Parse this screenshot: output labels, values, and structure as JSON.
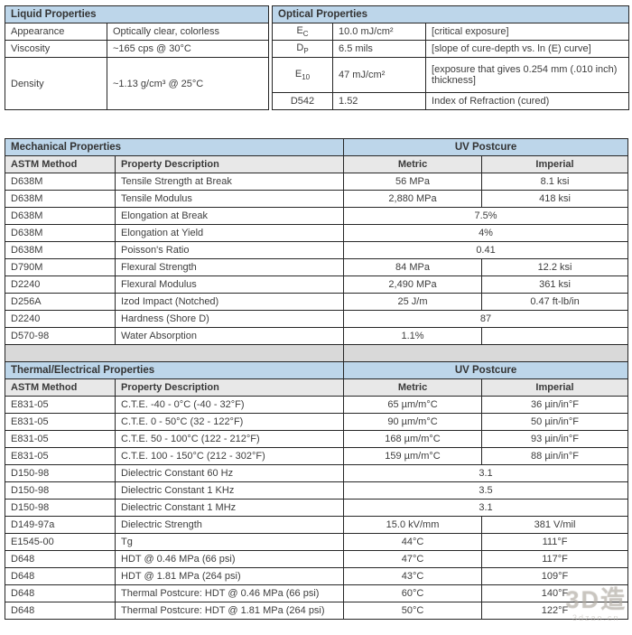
{
  "liquid": {
    "title": "Liquid Properties",
    "rows": [
      {
        "property": "Appearance",
        "value": "Optically clear, colorless"
      },
      {
        "property": "Viscosity",
        "value": "~165 cps @ 30°C"
      },
      {
        "property": "Density",
        "value": "~1.13 g/cm³ @ 25°C"
      }
    ]
  },
  "optical": {
    "title": "Optical Properties",
    "rows": [
      {
        "sym": "E",
        "sub": "C",
        "value": "10.0 mJ/cm²",
        "note": "[critical exposure]"
      },
      {
        "sym": "D",
        "sub": "P",
        "value": "6.5 mils",
        "note": "[slope of cure-depth vs. ln (E) curve]"
      },
      {
        "sym": "E",
        "sub": "10",
        "value": "47 mJ/cm²",
        "note": "[exposure that gives 0.254 mm (.010 inch) thickness]"
      },
      {
        "sym": "D542",
        "sub": "",
        "value": "1.52",
        "note": "Index of Refraction (cured)"
      }
    ]
  },
  "mechanical": {
    "title": "Mechanical Properties",
    "group_header": "UV Postcure",
    "columns": {
      "method": "ASTM Method",
      "property": "Property Description",
      "metric": "Metric",
      "imperial": "Imperial"
    },
    "rows": [
      {
        "method": "D638M",
        "property": "Tensile Strength at Break",
        "metric": "56 MPa",
        "imperial": "8.1 ksi"
      },
      {
        "method": "D638M",
        "property": "Tensile Modulus",
        "metric": "2,880 MPa",
        "imperial": "418 ksi"
      },
      {
        "method": "D638M",
        "property": "Elongation at Break",
        "span": "7.5%"
      },
      {
        "method": "D638M",
        "property": "Elongation at Yield",
        "span": "4%"
      },
      {
        "method": "D638M",
        "property": "Poisson's Ratio",
        "span": "0.41"
      },
      {
        "method": "D790M",
        "property": "Flexural Strength",
        "metric": "84 MPa",
        "imperial": "12.2 ksi"
      },
      {
        "method": "D2240",
        "property": "Flexural Modulus",
        "metric": "2,490 MPa",
        "imperial": "361 ksi"
      },
      {
        "method": "D256A",
        "property": "Izod Impact (Notched)",
        "metric": "25 J/m",
        "imperial": "0.47 ft-lb/in"
      },
      {
        "method": "D2240",
        "property": "Hardness (Shore D)",
        "span": "87"
      },
      {
        "method": "D570-98",
        "property": "Water Absorption",
        "metric": "1.1%",
        "imperial": ""
      }
    ]
  },
  "thermal": {
    "title": "Thermal/Electrical Properties",
    "group_header": "UV Postcure",
    "columns": {
      "method": "ASTM Method",
      "property": "Property Description",
      "metric": "Metric",
      "imperial": "Imperial"
    },
    "rows": [
      {
        "method": "E831-05",
        "property": "C.T.E. -40 - 0°C (-40 - 32°F)",
        "metric": "65 µm/m°C",
        "imperial": "36 µin/in°F"
      },
      {
        "method": "E831-05",
        "property": "C.T.E. 0 - 50°C (32 - 122°F)",
        "metric": "90 µm/m°C",
        "imperial": "50 µin/in°F"
      },
      {
        "method": "E831-05",
        "property": "C.T.E. 50 - 100°C (122 - 212°F)",
        "metric": "168 µm/m°C",
        "imperial": "93 µin/in°F"
      },
      {
        "method": "E831-05",
        "property": "C.T.E. 100 - 150°C (212 - 302°F)",
        "metric": "159 µm/m°C",
        "imperial": "88 µin/in°F"
      },
      {
        "method": "D150-98",
        "property": "Dielectric Constant 60 Hz",
        "span": "3.1"
      },
      {
        "method": "D150-98",
        "property": "Dielectric Constant 1 KHz",
        "span": "3.5"
      },
      {
        "method": "D150-98",
        "property": "Dielectric Constant 1 MHz",
        "span": "3.1"
      },
      {
        "method": "D149-97a",
        "property": "Dielectric Strength",
        "metric": "15.0 kV/mm",
        "imperial": "381 V/mil"
      },
      {
        "method": "E1545-00",
        "property": "Tg",
        "metric": "44°C",
        "imperial": "111°F"
      },
      {
        "method": "D648",
        "property": "HDT @ 0.46 MPa (66 psi)",
        "metric": "47°C",
        "imperial": "117°F"
      },
      {
        "method": "D648",
        "property": "HDT @ 1.81 MPa (264 psi)",
        "metric": "43°C",
        "imperial": "109°F"
      },
      {
        "method": "D648",
        "property": "Thermal Postcure: HDT @ 0.46 MPa (66 psi)",
        "metric": "60°C",
        "imperial": "140°F"
      },
      {
        "method": "D648",
        "property": "Thermal Postcure: HDT @ 1.81 MPa (264 psi)",
        "metric": "50°C",
        "imperial": "122°F"
      }
    ]
  },
  "watermark": {
    "logo": "3D造",
    "url": "3dzao.cn"
  },
  "colors": {
    "header_blue": "#bdd6ea",
    "subheader_gray": "#e8e8e8",
    "spacer_gray": "#d9d9d9"
  }
}
